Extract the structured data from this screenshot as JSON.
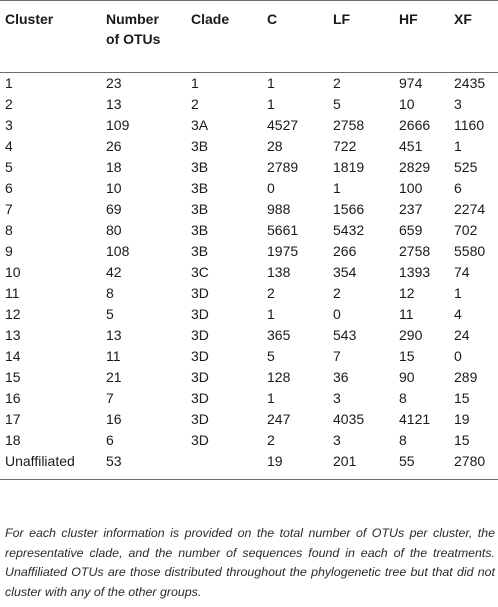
{
  "table": {
    "headers": {
      "cluster": "Cluster",
      "otus_line1": "Number",
      "otus_line2": "of OTUs",
      "clade": "Clade",
      "c": "C",
      "lf": "LF",
      "hf": "HF",
      "xf": "XF"
    },
    "rows": [
      {
        "cluster": "1",
        "otus": "23",
        "clade": "1",
        "c": "1",
        "lf": "2",
        "hf": "974",
        "xf": "2435"
      },
      {
        "cluster": "2",
        "otus": "13",
        "clade": "2",
        "c": "1",
        "lf": "5",
        "hf": "10",
        "xf": "3"
      },
      {
        "cluster": "3",
        "otus": "109",
        "clade": "3A",
        "c": "4527",
        "lf": "2758",
        "hf": "2666",
        "xf": "1160"
      },
      {
        "cluster": "4",
        "otus": "26",
        "clade": "3B",
        "c": "28",
        "lf": "722",
        "hf": "451",
        "xf": "1"
      },
      {
        "cluster": "5",
        "otus": "18",
        "clade": "3B",
        "c": "2789",
        "lf": "1819",
        "hf": "2829",
        "xf": "525"
      },
      {
        "cluster": "6",
        "otus": "10",
        "clade": "3B",
        "c": "0",
        "lf": "1",
        "hf": "100",
        "xf": "6"
      },
      {
        "cluster": "7",
        "otus": "69",
        "clade": "3B",
        "c": "988",
        "lf": "1566",
        "hf": "237",
        "xf": "2274"
      },
      {
        "cluster": "8",
        "otus": "80",
        "clade": "3B",
        "c": "5661",
        "lf": "5432",
        "hf": "659",
        "xf": "702"
      },
      {
        "cluster": "9",
        "otus": "108",
        "clade": "3B",
        "c": "1975",
        "lf": "266",
        "hf": "2758",
        "xf": "5580"
      },
      {
        "cluster": "10",
        "otus": "42",
        "clade": "3C",
        "c": "138",
        "lf": "354",
        "hf": "1393",
        "xf": "74"
      },
      {
        "cluster": "11",
        "otus": "8",
        "clade": "3D",
        "c": "2",
        "lf": "2",
        "hf": "12",
        "xf": "1"
      },
      {
        "cluster": "12",
        "otus": "5",
        "clade": "3D",
        "c": "1",
        "lf": "0",
        "hf": "11",
        "xf": "4"
      },
      {
        "cluster": "13",
        "otus": "13",
        "clade": "3D",
        "c": "365",
        "lf": "543",
        "hf": "290",
        "xf": "24"
      },
      {
        "cluster": "14",
        "otus": "11",
        "clade": "3D",
        "c": "5",
        "lf": "7",
        "hf": "15",
        "xf": "0"
      },
      {
        "cluster": "15",
        "otus": "21",
        "clade": "3D",
        "c": "128",
        "lf": "36",
        "hf": "90",
        "xf": "289"
      },
      {
        "cluster": "16",
        "otus": "7",
        "clade": "3D",
        "c": "1",
        "lf": "3",
        "hf": "8",
        "xf": "15"
      },
      {
        "cluster": "17",
        "otus": "16",
        "clade": "3D",
        "c": "247",
        "lf": "4035",
        "hf": "4121",
        "xf": "19"
      },
      {
        "cluster": "18",
        "otus": "6",
        "clade": "3D",
        "c": "2",
        "lf": "3",
        "hf": "8",
        "xf": "15"
      },
      {
        "cluster": "Unaffiliated",
        "otus": "53",
        "clade": "",
        "c": "19",
        "lf": "201",
        "hf": "55",
        "xf": "2780"
      }
    ]
  },
  "footnote": "For each cluster information is provided on the total number of OTUs per cluster, the representative clade, and the number of sequences found in each of the treatments. Unaffiliated OTUs are those distributed throughout the phylogenetic tree but that did not cluster with any of the other groups."
}
